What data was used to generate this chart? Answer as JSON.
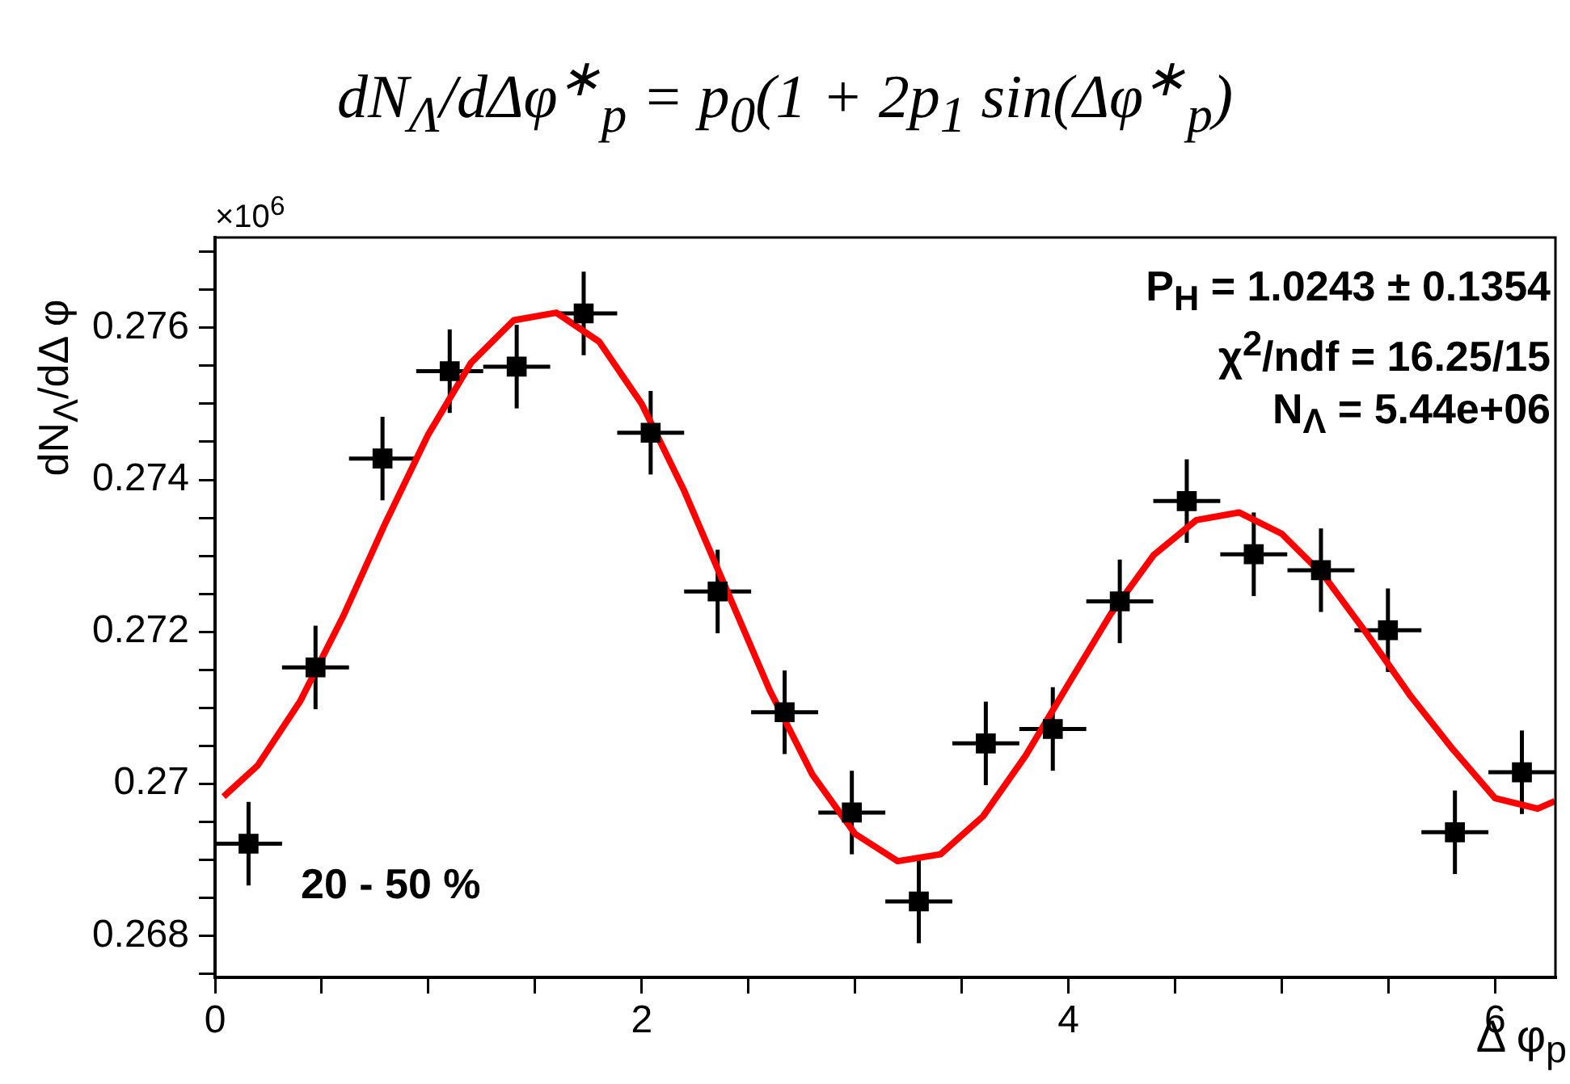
{
  "chart_data": {
    "type": "scatter",
    "title": "dN$_{Λ}$/dΔφ$^{∗}$$_{p}$ = p$_{0}$(1 + 2p$_{1}$ sin(Δφ$^{∗}$$_{p}$)",
    "xlabel": "Δ φ$_{p}$",
    "ylabel": "dN$_{Λ}$/dΔ φ",
    "annotations": [
      "×10$^{6}$",
      "P$_{H}$ = 1.0243 ± 0.1354",
      "χ$^{2}$/ndf = 16.25/15",
      "N$_{Λ}$ =  5.44e+06",
      "20 - 50 %"
    ],
    "xlim": [
      0,
      6.2832
    ],
    "ylim": [
      0.26745,
      0.27719
    ],
    "xticks": [
      0,
      {
        "value": 0.5,
        "label": null
      },
      {
        "value": 1,
        "label": null
      },
      {
        "value": 1.5,
        "label": null
      },
      2,
      {
        "value": 2.5,
        "label": null
      },
      {
        "value": 3,
        "label": null
      },
      {
        "value": 3.5,
        "label": null
      },
      4,
      {
        "value": 4.5,
        "label": null
      },
      {
        "value": 5,
        "label": null
      },
      {
        "value": 5.5,
        "label": null
      },
      6
    ],
    "yticks": [
      {
        "value": 0.2675,
        "label": null
      },
      0.268,
      {
        "value": 0.2685,
        "label": null
      },
      {
        "value": 0.269,
        "label": null
      },
      {
        "value": 0.2695,
        "label": null
      },
      0.27,
      {
        "value": 0.2705,
        "label": null
      },
      {
        "value": 0.271,
        "label": null
      },
      {
        "value": 0.2715,
        "label": null
      },
      0.272,
      {
        "value": 0.2725,
        "label": null
      },
      {
        "value": 0.273,
        "label": null
      },
      {
        "value": 0.2735,
        "label": null
      },
      0.274,
      {
        "value": 0.2745,
        "label": null
      },
      {
        "value": 0.275,
        "label": null
      },
      {
        "value": 0.2755,
        "label": null
      },
      0.276,
      {
        "value": 0.2765,
        "label": null
      },
      {
        "value": 0.277,
        "label": null
      }
    ],
    "grid": false,
    "legend": false,
    "marker": "square",
    "series": [
      {
        "color": "#000000",
        "x": [
          0.157,
          0.471,
          0.785,
          1.1,
          1.414,
          1.728,
          2.042,
          2.356,
          2.67,
          2.985,
          3.299,
          3.613,
          3.927,
          4.241,
          4.555,
          4.869,
          5.184,
          5.498,
          5.812,
          6.126
        ],
        "values": [
          0.26921,
          0.27153,
          0.27428,
          0.27543,
          0.27549,
          0.27619,
          0.27462,
          0.27253,
          0.27094,
          0.26962,
          0.26845,
          0.27053,
          0.27072,
          0.2724,
          0.27372,
          0.27302,
          0.27281,
          0.27202,
          0.26936,
          0.27015
        ],
        "errors": [
          0.00055,
          0.00055,
          0.00055,
          0.00055,
          0.00055,
          0.00055,
          0.00055,
          0.00055,
          0.00055,
          0.00055,
          0.00055,
          0.00055,
          0.00055,
          0.00055,
          0.00055,
          0.00055,
          0.00055,
          0.00055,
          0.00055,
          0.00055
        ],
        "xerrors": [
          0.157,
          0.157,
          0.157,
          0.157,
          0.157,
          0.157,
          0.157,
          0.157,
          0.157,
          0.157,
          0.157,
          0.157,
          0.157,
          0.157,
          0.157,
          0.157,
          0.157,
          0.157,
          0.157,
          0.157
        ]
      },
      {
        "type": "line",
        "color": "#ff0000",
        "marker": "none",
        "x": [
          0.04,
          0.2,
          0.4,
          0.6,
          0.8,
          1.0,
          1.2,
          1.4,
          1.6,
          1.8,
          2.0,
          2.2,
          2.4,
          2.6,
          2.8,
          3.0,
          3.2,
          3.4,
          3.6,
          3.8,
          4.0,
          4.2,
          4.4,
          4.6,
          4.8,
          5.0,
          5.2,
          5.4,
          5.6,
          5.8,
          6.0,
          6.2,
          6.28
        ],
        "values": [
          0.26983,
          0.27024,
          0.27109,
          0.2722,
          0.27344,
          0.2746,
          0.27554,
          0.2761,
          0.2762,
          0.27582,
          0.275,
          0.27385,
          0.27254,
          0.27123,
          0.27012,
          0.26934,
          0.26898,
          0.26907,
          0.26957,
          0.27037,
          0.27131,
          0.27224,
          0.27301,
          0.27347,
          0.27357,
          0.27329,
          0.27273,
          0.27197,
          0.27117,
          0.27046,
          0.26981,
          0.26967,
          0.26977
        ]
      }
    ]
  }
}
